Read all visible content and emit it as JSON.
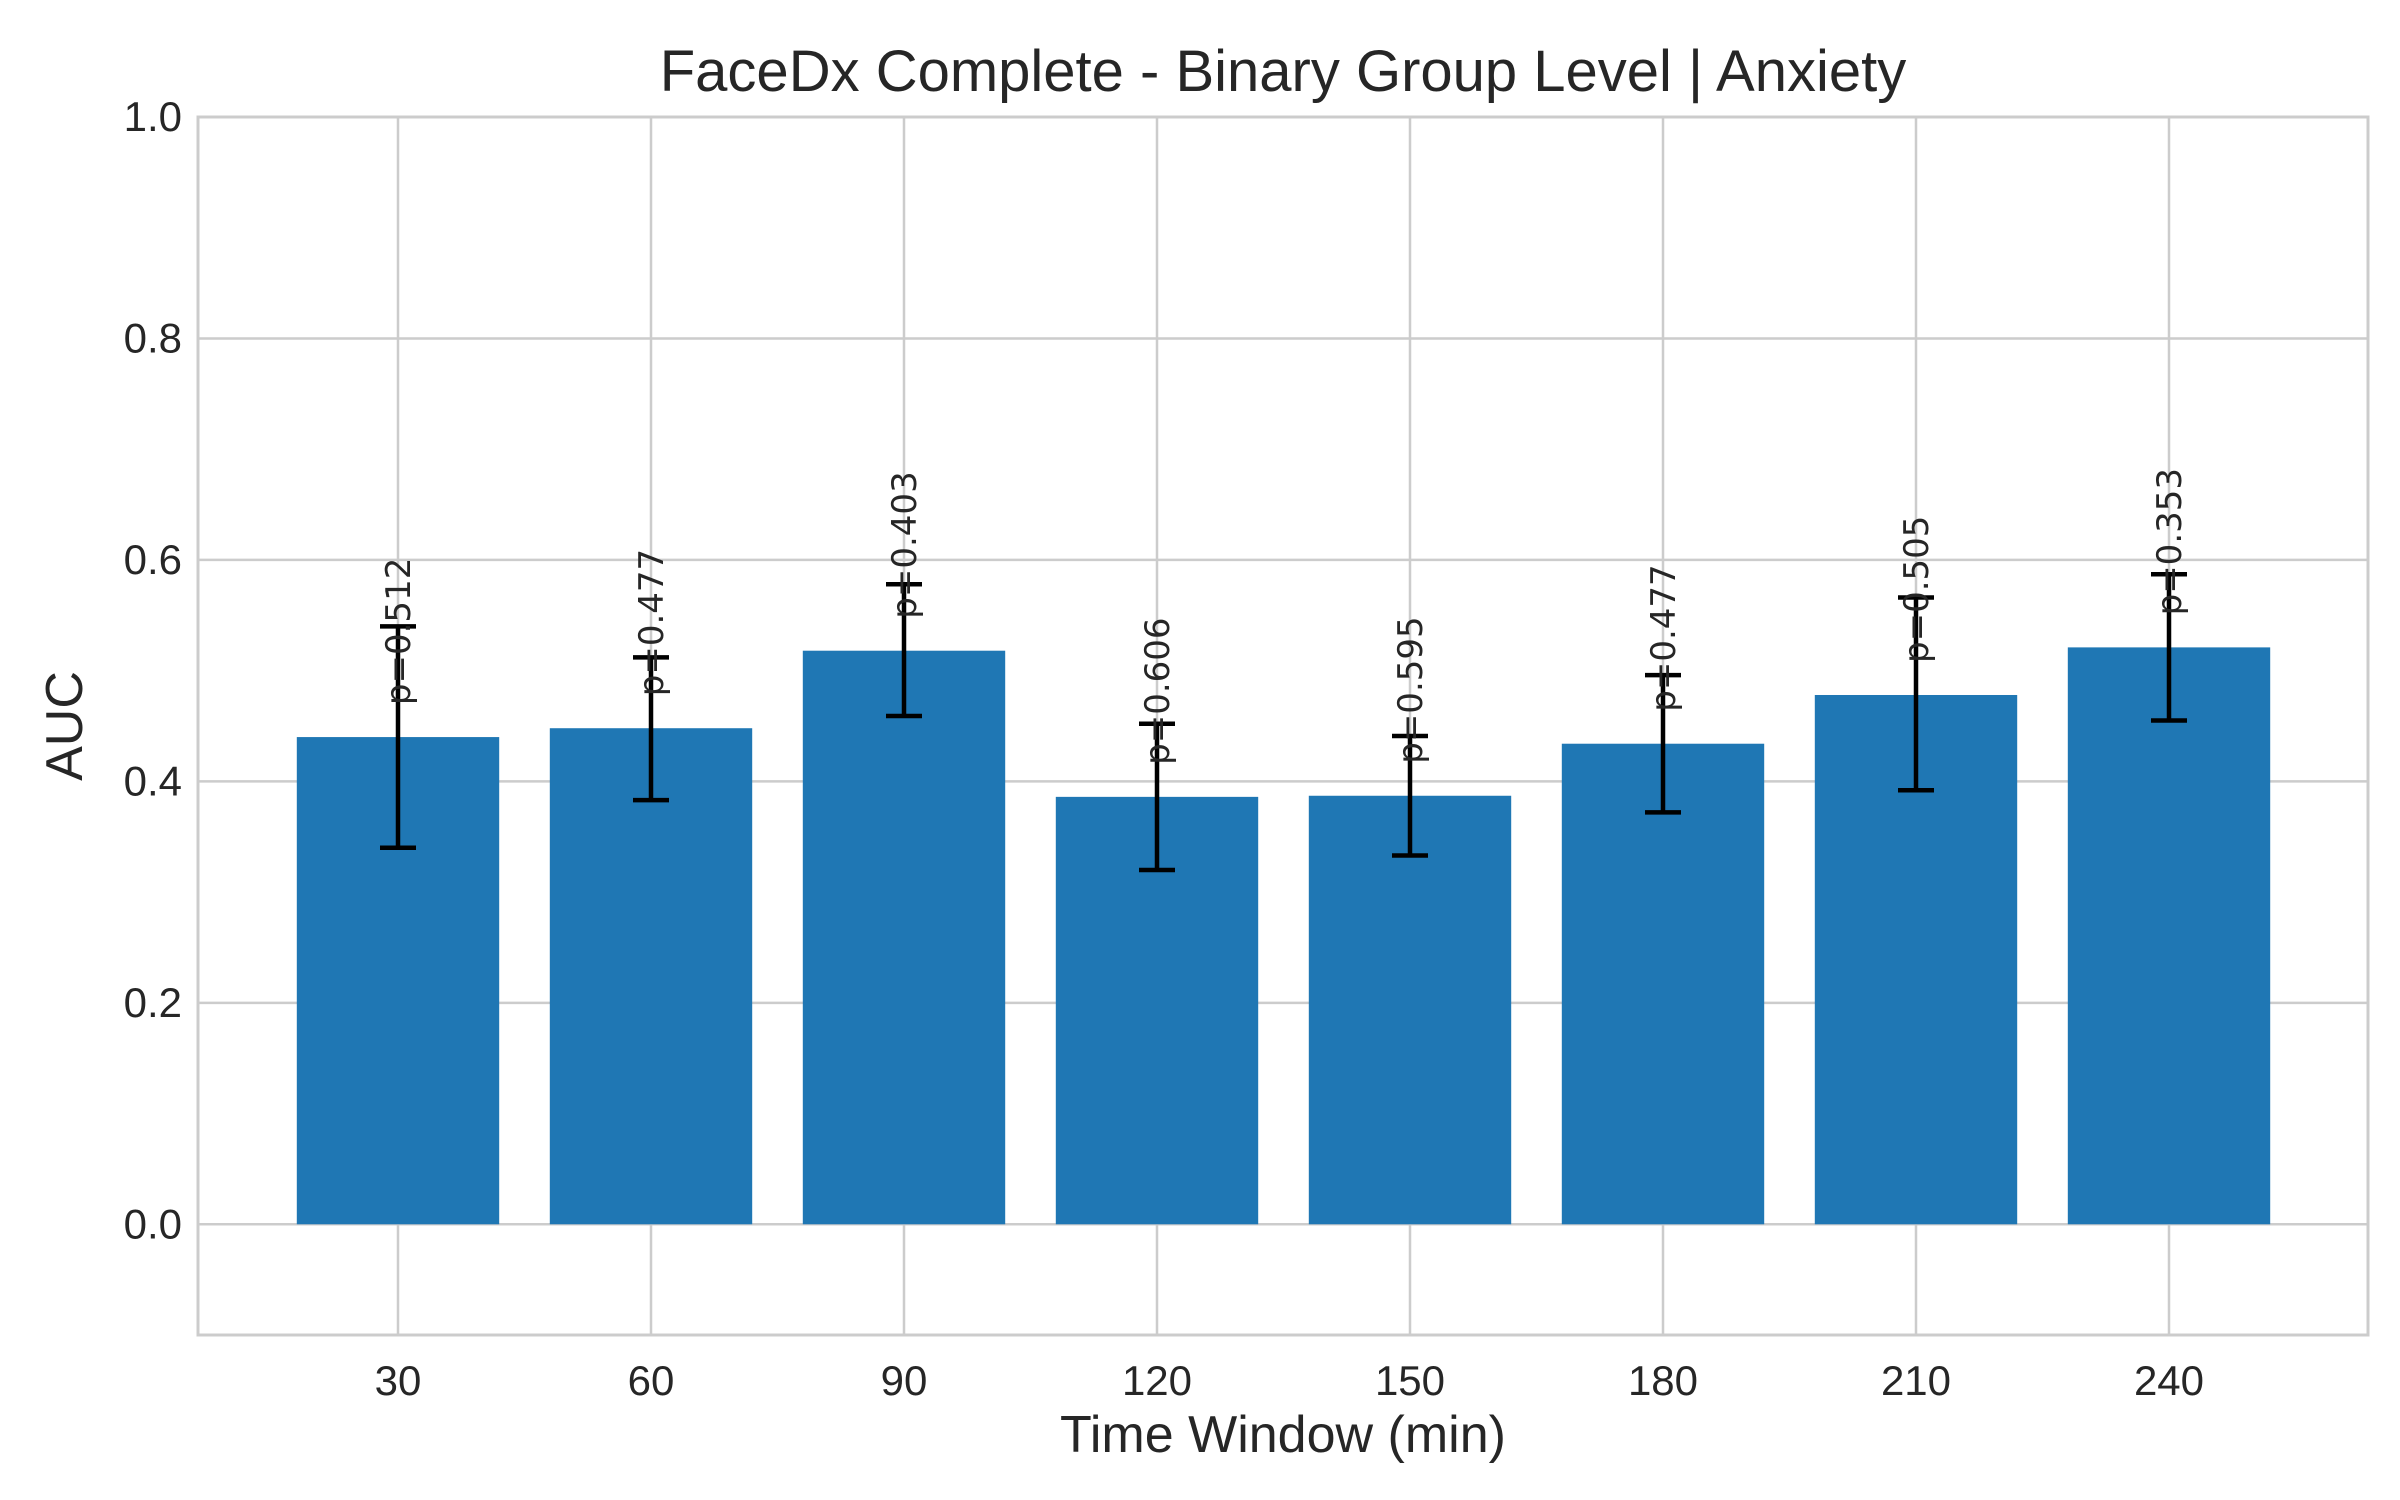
{
  "chart_data": {
    "type": "bar",
    "title": "FaceDx Complete - Binary Group Level | Anxiety",
    "xlabel": "Time Window (min)",
    "ylabel": "AUC",
    "categories": [
      "30",
      "60",
      "90",
      "120",
      "150",
      "180",
      "210",
      "240"
    ],
    "values": [
      0.44,
      0.448,
      0.518,
      0.386,
      0.387,
      0.434,
      0.478,
      0.521
    ],
    "error_low": [
      0.34,
      0.383,
      0.459,
      0.32,
      0.333,
      0.372,
      0.392,
      0.455
    ],
    "error_high": [
      0.54,
      0.512,
      0.578,
      0.452,
      0.441,
      0.496,
      0.566,
      0.587
    ],
    "p_labels": [
      "p=0.512",
      "p=0.477",
      "p=0.403",
      "p=0.606",
      "p=0.595",
      "p=0.477",
      "p=0.505",
      "p=0.353"
    ],
    "ylim": [
      -0.1,
      1.0
    ],
    "yticks": [
      "0.0",
      "0.2",
      "0.4",
      "0.6",
      "0.8",
      "1.0"
    ],
    "ytick_values": [
      0.0,
      0.2,
      0.4,
      0.6,
      0.8,
      1.0
    ],
    "grid": true,
    "bar_color": "#1f77b4",
    "error_color": "#000000",
    "grid_color": "#cccccc",
    "spine_color": "#cccccc"
  }
}
